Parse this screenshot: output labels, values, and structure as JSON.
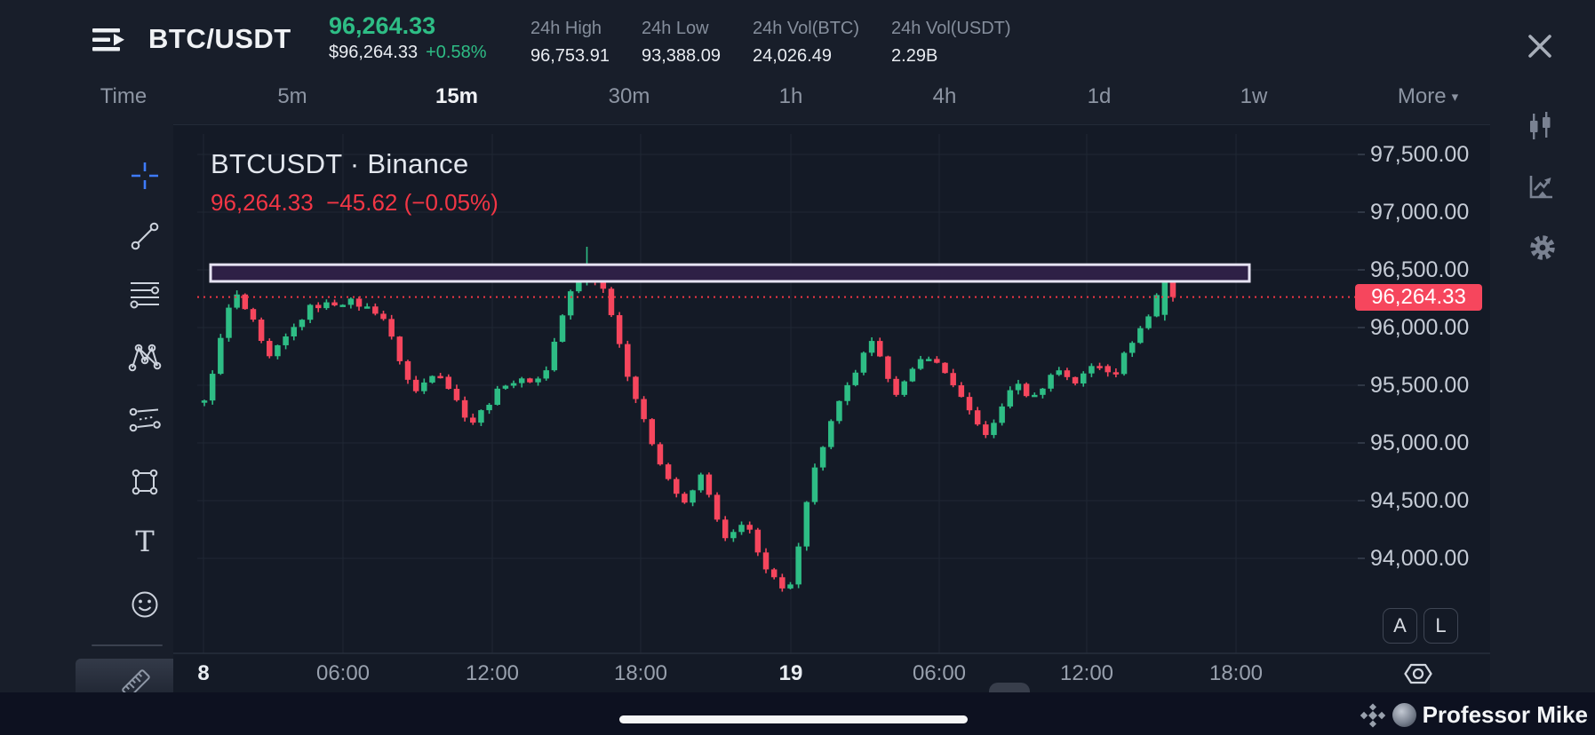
{
  "header": {
    "symbol": "BTC/USDT",
    "last_price": "96,264.33",
    "fiat_price": "$96,264.33",
    "change_pct": "+0.58%",
    "stats": [
      {
        "label": "24h High",
        "value": "96,753.91"
      },
      {
        "label": "24h Low",
        "value": "93,388.09"
      },
      {
        "label": "24h Vol(BTC)",
        "value": "24,026.49"
      },
      {
        "label": "24h Vol(USDT)",
        "value": "2.29B"
      }
    ]
  },
  "timeframes": {
    "items": [
      {
        "label": "Time",
        "active": false,
        "dropdown": false
      },
      {
        "label": "5m",
        "active": false,
        "dropdown": false
      },
      {
        "label": "15m",
        "active": true,
        "dropdown": false
      },
      {
        "label": "30m",
        "active": false,
        "dropdown": false
      },
      {
        "label": "1h",
        "active": false,
        "dropdown": false
      },
      {
        "label": "4h",
        "active": false,
        "dropdown": false
      },
      {
        "label": "1d",
        "active": false,
        "dropdown": false
      },
      {
        "label": "1w",
        "active": false,
        "dropdown": false
      },
      {
        "label": "More",
        "active": false,
        "dropdown": true
      }
    ],
    "caret": "▾"
  },
  "toolbar": {
    "tools": [
      "crosshair",
      "trend-line",
      "horizontal-line",
      "xabcd-pattern",
      "parallel-channel",
      "rectangle",
      "text",
      "emoji"
    ],
    "extra_tool": "ruler",
    "collapse_char": "‹"
  },
  "chart": {
    "title": "BTCUSDT · Binance",
    "status_price": "96,264.33",
    "status_change": "−45.62",
    "status_change_pct": "(−0.05%)",
    "price_tag": "96,264.33",
    "auto_button": "A",
    "log_button": "L",
    "refresh_glyph": "↺"
  },
  "chart_data": {
    "type": "candlestick",
    "symbol": "BTCUSDT",
    "exchange": "Binance",
    "interval": "15m",
    "title": "BTCUSDT · Binance",
    "current_price": 96264.33,
    "change": -45.62,
    "change_pct": -0.05,
    "ylim": [
      93150,
      97750
    ],
    "grid": true,
    "y_ticks": [
      {
        "label": "97,500.00",
        "price": 97500
      },
      {
        "label": "97,000.00",
        "price": 97000
      },
      {
        "label": "96,500.00",
        "price": 96500
      },
      {
        "label": "96,000.00",
        "price": 96000
      },
      {
        "label": "95,500.00",
        "price": 95500
      },
      {
        "label": "95,000.00",
        "price": 95000
      },
      {
        "label": "94,500.00",
        "price": 94500
      },
      {
        "label": "94,000.00",
        "price": 94000
      }
    ],
    "x_ticks": [
      {
        "label": "8",
        "major": true
      },
      {
        "label": "06:00",
        "major": false
      },
      {
        "label": "12:00",
        "major": false
      },
      {
        "label": "18:00",
        "major": false
      },
      {
        "label": "19",
        "major": true
      },
      {
        "label": "06:00",
        "major": false
      },
      {
        "label": "12:00",
        "major": false
      },
      {
        "label": "18:00",
        "major": false
      }
    ],
    "candle_count": 120,
    "price_path": [
      [
        0.0,
        95350
      ],
      [
        0.03,
        96320
      ],
      [
        0.055,
        95980
      ],
      [
        0.064,
        95700
      ],
      [
        0.11,
        96180
      ],
      [
        0.15,
        96230
      ],
      [
        0.183,
        96120
      ],
      [
        0.216,
        95420
      ],
      [
        0.24,
        95650
      ],
      [
        0.275,
        95160
      ],
      [
        0.31,
        95520
      ],
      [
        0.35,
        95560
      ],
      [
        0.376,
        96280
      ],
      [
        0.396,
        96480
      ],
      [
        0.415,
        96300
      ],
      [
        0.435,
        95650
      ],
      [
        0.455,
        95150
      ],
      [
        0.475,
        94750
      ],
      [
        0.495,
        94450
      ],
      [
        0.515,
        94750
      ],
      [
        0.535,
        94150
      ],
      [
        0.56,
        94300
      ],
      [
        0.58,
        93900
      ],
      [
        0.603,
        93660
      ],
      [
        0.625,
        94650
      ],
      [
        0.65,
        95250
      ],
      [
        0.688,
        95880
      ],
      [
        0.715,
        95430
      ],
      [
        0.745,
        95780
      ],
      [
        0.77,
        95560
      ],
      [
        0.795,
        95180
      ],
      [
        0.81,
        95060
      ],
      [
        0.835,
        95530
      ],
      [
        0.855,
        95380
      ],
      [
        0.88,
        95650
      ],
      [
        0.9,
        95520
      ],
      [
        0.92,
        95700
      ],
      [
        0.94,
        95600
      ],
      [
        0.955,
        95850
      ],
      [
        0.975,
        96100
      ],
      [
        0.99,
        96430
      ],
      [
        1.0,
        96264.33
      ]
    ],
    "overrides": [
      {
        "index": 47,
        "high": 96700
      },
      {
        "index": -2,
        "open": 96110,
        "close": 96440,
        "high": 96545,
        "low": 96060
      },
      {
        "index": -1,
        "open": 96440,
        "close": 96264.33,
        "high": 96455,
        "low": 96225
      }
    ],
    "price_line": 96264.33,
    "drawing_rectangle": {
      "price_top": 96545,
      "price_bottom": 96400
    },
    "colors": {
      "up": "#2ebd85",
      "down": "#f6465d",
      "price_line": "#f23645",
      "tag_bg": "#f6465d",
      "rect_fill": "#2e2046",
      "rect_border": "#e6e3f2",
      "accent_blue": "#3e7bfa",
      "grid": "#1f2734"
    }
  },
  "right_rail": {
    "icons": [
      "compare-candles",
      "indicators",
      "settings"
    ]
  },
  "footer": {
    "watermark": "Professor Mike"
  }
}
